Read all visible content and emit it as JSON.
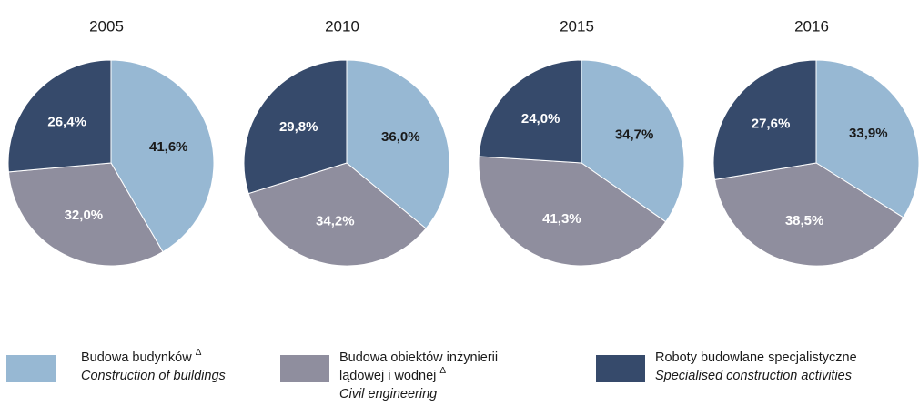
{
  "chart_data": [
    {
      "type": "pie",
      "title": "2005",
      "values": [
        41.6,
        32.0,
        26.4
      ],
      "value_labels": [
        "41,6%",
        "32,0%",
        "26,4%"
      ]
    },
    {
      "type": "pie",
      "title": "2010",
      "values": [
        36.0,
        34.2,
        29.8
      ],
      "value_labels": [
        "36,0%",
        "34,2%",
        "29,8%"
      ]
    },
    {
      "type": "pie",
      "title": "2015",
      "values": [
        34.7,
        41.3,
        24.0
      ],
      "value_labels": [
        "34,7%",
        "41,3%",
        "24,0%"
      ]
    },
    {
      "type": "pie",
      "title": "2016",
      "values": [
        33.9,
        38.5,
        27.6
      ],
      "value_labels": [
        "33,9%",
        "38,5%",
        "27,6%"
      ]
    }
  ],
  "legend": [
    {
      "name": [
        "Budowa budynków"
      ],
      "note": "Δ",
      "translation": "Construction of buildings",
      "color": "#97b8d3"
    },
    {
      "name": [
        "Budowa obiektów inżynierii",
        "lądowej i wodnej"
      ],
      "note": "Δ",
      "translation": "Civil engineering",
      "color": "#8f8e9e"
    },
    {
      "name": [
        "Roboty budowlane specjalistyczne"
      ],
      "translation": "Specialised construction activities",
      "color": "#364a6b"
    }
  ]
}
